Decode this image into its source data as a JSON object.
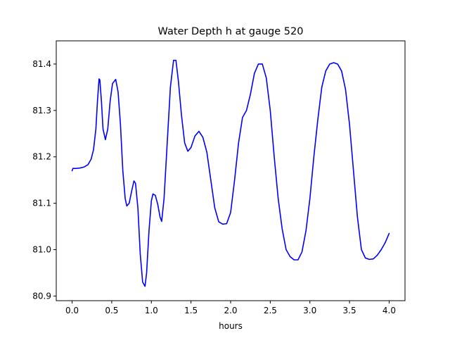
{
  "chart_data": {
    "type": "line",
    "title": "Water Depth h at gauge 520",
    "xlabel": "hours",
    "ylabel": "",
    "xlim": [
      -0.2,
      4.2
    ],
    "ylim": [
      80.89,
      81.45
    ],
    "xticks": [
      "0.0",
      "0.5",
      "1.0",
      "1.5",
      "2.0",
      "2.5",
      "3.0",
      "3.5",
      "4.0"
    ],
    "yticks": [
      "80.9",
      "81.0",
      "81.1",
      "81.2",
      "81.3",
      "81.4"
    ],
    "grid": false,
    "series": [
      {
        "color": "#0000ff",
        "points": [
          [
            0.0,
            81.17
          ],
          [
            0.01,
            81.175
          ],
          [
            0.05,
            81.175
          ],
          [
            0.1,
            81.176
          ],
          [
            0.15,
            81.178
          ],
          [
            0.2,
            81.183
          ],
          [
            0.24,
            81.195
          ],
          [
            0.27,
            81.215
          ],
          [
            0.3,
            81.26
          ],
          [
            0.32,
            81.32
          ],
          [
            0.34,
            81.368
          ],
          [
            0.35,
            81.366
          ],
          [
            0.37,
            81.32
          ],
          [
            0.39,
            81.26
          ],
          [
            0.42,
            81.237
          ],
          [
            0.45,
            81.26
          ],
          [
            0.48,
            81.32
          ],
          [
            0.51,
            81.358
          ],
          [
            0.55,
            81.367
          ],
          [
            0.58,
            81.34
          ],
          [
            0.61,
            81.27
          ],
          [
            0.64,
            81.17
          ],
          [
            0.67,
            81.11
          ],
          [
            0.69,
            81.094
          ],
          [
            0.72,
            81.1
          ],
          [
            0.75,
            81.125
          ],
          [
            0.78,
            81.148
          ],
          [
            0.8,
            81.143
          ],
          [
            0.83,
            81.09
          ],
          [
            0.86,
            80.99
          ],
          [
            0.89,
            80.93
          ],
          [
            0.92,
            80.921
          ],
          [
            0.94,
            80.95
          ],
          [
            0.97,
            81.04
          ],
          [
            1.0,
            81.105
          ],
          [
            1.02,
            81.12
          ],
          [
            1.05,
            81.117
          ],
          [
            1.08,
            81.098
          ],
          [
            1.11,
            81.07
          ],
          [
            1.13,
            81.061
          ],
          [
            1.16,
            81.11
          ],
          [
            1.2,
            81.23
          ],
          [
            1.24,
            81.35
          ],
          [
            1.28,
            81.408
          ],
          [
            1.31,
            81.408
          ],
          [
            1.34,
            81.365
          ],
          [
            1.38,
            81.29
          ],
          [
            1.42,
            81.23
          ],
          [
            1.46,
            81.212
          ],
          [
            1.5,
            81.22
          ],
          [
            1.55,
            81.245
          ],
          [
            1.6,
            81.255
          ],
          [
            1.65,
            81.242
          ],
          [
            1.7,
            81.21
          ],
          [
            1.75,
            81.15
          ],
          [
            1.8,
            81.09
          ],
          [
            1.85,
            81.06
          ],
          [
            1.9,
            81.055
          ],
          [
            1.95,
            81.056
          ],
          [
            2.0,
            81.08
          ],
          [
            2.05,
            81.15
          ],
          [
            2.1,
            81.23
          ],
          [
            2.15,
            81.285
          ],
          [
            2.2,
            81.3
          ],
          [
            2.25,
            81.335
          ],
          [
            2.3,
            81.38
          ],
          [
            2.35,
            81.4
          ],
          [
            2.4,
            81.4
          ],
          [
            2.45,
            81.37
          ],
          [
            2.5,
            81.3
          ],
          [
            2.55,
            81.2
          ],
          [
            2.6,
            81.11
          ],
          [
            2.65,
            81.045
          ],
          [
            2.7,
            81.0
          ],
          [
            2.75,
            80.985
          ],
          [
            2.8,
            80.978
          ],
          [
            2.85,
            80.978
          ],
          [
            2.9,
            80.995
          ],
          [
            2.95,
            81.04
          ],
          [
            3.0,
            81.11
          ],
          [
            3.05,
            81.2
          ],
          [
            3.1,
            81.28
          ],
          [
            3.15,
            81.35
          ],
          [
            3.2,
            81.385
          ],
          [
            3.25,
            81.4
          ],
          [
            3.3,
            81.403
          ],
          [
            3.35,
            81.4
          ],
          [
            3.4,
            81.385
          ],
          [
            3.45,
            81.345
          ],
          [
            3.5,
            81.27
          ],
          [
            3.55,
            81.17
          ],
          [
            3.6,
            81.07
          ],
          [
            3.65,
            81.0
          ],
          [
            3.7,
            80.982
          ],
          [
            3.75,
            80.979
          ],
          [
            3.8,
            80.98
          ],
          [
            3.85,
            80.988
          ],
          [
            3.9,
            81.0
          ],
          [
            3.95,
            81.015
          ],
          [
            4.0,
            81.035
          ]
        ]
      }
    ]
  }
}
